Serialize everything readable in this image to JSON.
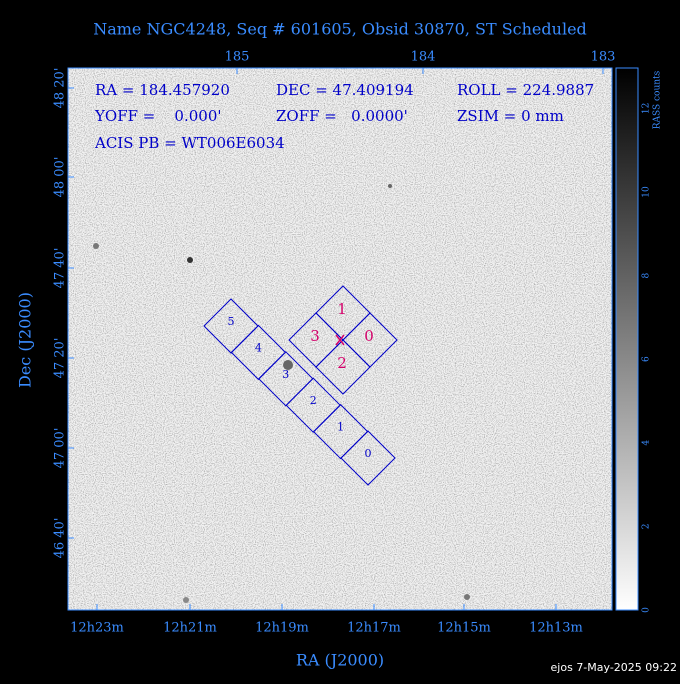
{
  "header": {
    "title": "Name NGC4248, Seq # 601605, Obsid 30870, ST Scheduled"
  },
  "axes": {
    "top_ticks": [
      "185",
      "184",
      "183"
    ],
    "left_ticks": [
      "48 20'",
      "48 00'",
      "47 40'",
      "47 20'",
      "47 00'",
      "46 40'"
    ],
    "bottom_ticks": [
      "12h23m",
      "12h21m",
      "12h19m",
      "12h17m",
      "12h15m",
      "12h13m"
    ],
    "x_title": "RA (J2000)",
    "y_title": "Dec (J2000)"
  },
  "colorbar": {
    "ticks": [
      "0",
      "2",
      "4",
      "6",
      "8",
      "10",
      "12"
    ],
    "label": "RASS counts"
  },
  "info": [
    "RA = 184.457920",
    "DEC = 47.409194",
    "ROLL = 224.9887",
    "YOFF =    0.000'",
    "ZOFF =   0.0000'",
    "ZSIM = 0 mm",
    "ACIS PB = WT006E6034"
  ],
  "acis_s_chips": [
    "5",
    "4",
    "3",
    "2",
    "1",
    "0"
  ],
  "acis_i_chips": [
    "1",
    "3",
    "0",
    "2"
  ],
  "footer": "ejos  7-May-2025 09:22"
}
